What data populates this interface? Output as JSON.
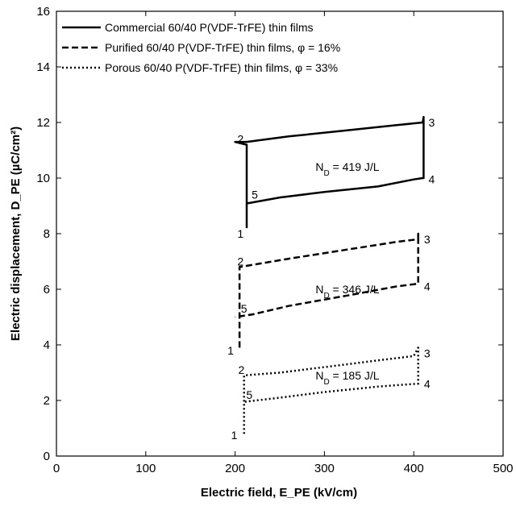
{
  "chart_data": {
    "type": "line",
    "xlabel": "Electric field, E_PE (kV/cm)",
    "ylabel": "Electric displacement, D_PE (µC/cm²)",
    "xlim": [
      0,
      500
    ],
    "ylim": [
      0,
      16
    ],
    "xticks": [
      0,
      100,
      200,
      300,
      400,
      500
    ],
    "yticks": [
      0,
      2,
      4,
      6,
      8,
      10,
      12,
      14,
      16
    ],
    "grid": false,
    "legend_position": "top-left",
    "series": [
      {
        "name": "Commercial 60/40 P(VDF-TrFE) thin films",
        "dash": "solid",
        "x": [
          213,
          213,
          213,
          200,
          213,
          260,
          320,
          380,
          410,
          411,
          411,
          410,
          400,
          360,
          300,
          250,
          215,
          213
        ],
        "y": [
          8.2,
          9.1,
          11.2,
          11.3,
          11.3,
          11.5,
          11.7,
          11.9,
          12.0,
          12.2,
          10.0,
          10.0,
          9.95,
          9.7,
          9.5,
          9.3,
          9.1,
          9.1
        ]
      },
      {
        "name": "Purified 60/40 P(VDF-TrFE) thin films, φ = 16%",
        "dash": "dashed",
        "x": [
          205,
          205,
          205,
          260,
          320,
          380,
          405,
          405,
          405,
          380,
          330,
          260,
          220,
          200
        ],
        "y": [
          3.9,
          5.0,
          6.8,
          7.1,
          7.4,
          7.7,
          7.8,
          8.0,
          6.2,
          6.1,
          5.8,
          5.4,
          5.1,
          5.0
        ]
      },
      {
        "name": "Porous 60/40 P(VDF-TrFE) thin films, φ = 33%",
        "dash": "dotted",
        "x": [
          210,
          210,
          210,
          250,
          300,
          350,
          400,
          405,
          405,
          403,
          360,
          300,
          250,
          210
        ],
        "y": [
          0.8,
          1.9,
          2.9,
          3.0,
          3.2,
          3.4,
          3.6,
          3.9,
          2.6,
          2.6,
          2.5,
          2.3,
          2.1,
          1.95
        ]
      }
    ],
    "annotations": [
      {
        "text": "N_D = 419 J/L",
        "x": 290,
        "y": 10.4
      },
      {
        "text": "N_D = 346 J/L",
        "x": 290,
        "y": 6.0
      },
      {
        "text": "N_D = 185 J/L",
        "x": 290,
        "y": 2.9
      },
      {
        "text": "1",
        "x": 206,
        "y": 8.0
      },
      {
        "text": "2",
        "x": 206,
        "y": 11.4
      },
      {
        "text": "3",
        "x": 420,
        "y": 12.0
      },
      {
        "text": "4",
        "x": 420,
        "y": 9.95
      },
      {
        "text": "5",
        "x": 222,
        "y": 9.4
      },
      {
        "text": "1",
        "x": 195,
        "y": 3.8
      },
      {
        "text": "2",
        "x": 206,
        "y": 7.0
      },
      {
        "text": "3",
        "x": 415,
        "y": 7.8
      },
      {
        "text": "4",
        "x": 415,
        "y": 6.1
      },
      {
        "text": "5",
        "x": 210,
        "y": 5.3
      },
      {
        "text": "1",
        "x": 199,
        "y": 0.75
      },
      {
        "text": "2",
        "x": 207,
        "y": 3.1
      },
      {
        "text": "3",
        "x": 415,
        "y": 3.7
      },
      {
        "text": "4",
        "x": 415,
        "y": 2.6
      },
      {
        "text": "5",
        "x": 216,
        "y": 2.2
      }
    ]
  },
  "colors": {
    "line": "#000000",
    "background": "#ffffff"
  }
}
